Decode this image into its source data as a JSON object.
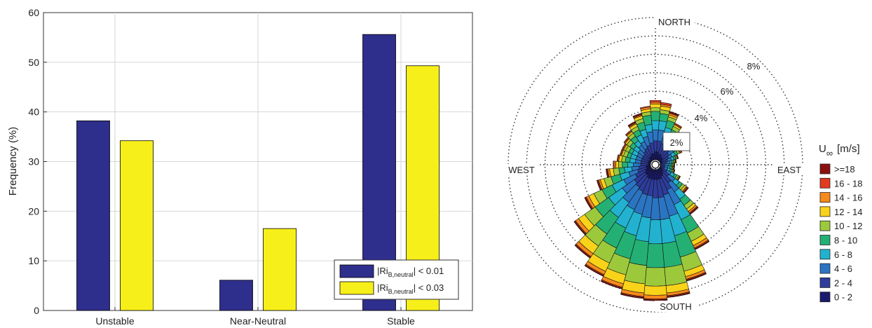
{
  "chart_data": [
    {
      "type": "bar",
      "categories": [
        "Unstable",
        "Near-Neutral",
        "Stable"
      ],
      "series": [
        {
          "name": "|Ri_B,neutral| < 0.01",
          "name_main": "|Ri",
          "name_sub": "B,neutral",
          "name_tail": "| < 0.01",
          "color": "#2e2e8c",
          "values": [
            38.2,
            6.1,
            55.6
          ]
        },
        {
          "name": "|Ri_B,neutral| < 0.03",
          "name_main": "|Ri",
          "name_sub": "B,neutral",
          "name_tail": "| < 0.03",
          "color": "#f7ef1a",
          "values": [
            34.2,
            16.5,
            49.3
          ]
        }
      ],
      "ylabel": "Frequency (%)",
      "xlabel": "",
      "ylim": [
        0,
        60
      ],
      "yticks": [
        "0",
        "10",
        "20",
        "30",
        "40",
        "50",
        "60"
      ],
      "grid": true,
      "legend_position": "bottom-right"
    },
    {
      "type": "wind-rose",
      "direction_labels": {
        "north": "NORTH",
        "south": "SOUTH",
        "east": "EAST",
        "west": "WEST"
      },
      "ring_values": [
        2,
        4,
        6,
        8
      ],
      "ring_labels": [
        "2%",
        "4%",
        "6%",
        "8%"
      ],
      "legend_title_main": "U",
      "legend_title_sub": "∞",
      "legend_title_unit": "[m/s]",
      "speed_bins": [
        {
          "label": ">=18",
          "color": "#8b0f0f"
        },
        {
          "label": "16 - 18",
          "color": "#e23a1f"
        },
        {
          "label": "14 - 16",
          "color": "#f7891c"
        },
        {
          "label": "12 - 14",
          "color": "#f9d21a"
        },
        {
          "label": "10 - 12",
          "color": "#9cc93c"
        },
        {
          "label": "8 - 10",
          "color": "#24b075"
        },
        {
          "label": "6 - 8",
          "color": "#22b2cf"
        },
        {
          "label": "4 - 6",
          "color": "#2b74c2"
        },
        {
          "label": "2 - 4",
          "color": "#2e3c9b"
        },
        {
          "label": "0 - 2",
          "color": "#1a1a6e"
        }
      ],
      "sectors": [
        {
          "dir": 0,
          "cum": [
            0.7,
            1.3,
            1.9,
            2.4,
            2.9,
            3.1,
            3.3,
            3.4,
            3.5,
            3.5
          ]
        },
        {
          "dir": 10,
          "cum": [
            0.7,
            1.3,
            1.9,
            2.4,
            2.8,
            3.0,
            3.2,
            3.3,
            3.4,
            3.4
          ]
        },
        {
          "dir": 20,
          "cum": [
            0.6,
            1.2,
            1.7,
            2.1,
            2.5,
            2.7,
            2.8,
            2.9,
            2.95,
            3.0
          ]
        },
        {
          "dir": 30,
          "cum": [
            0.6,
            1.1,
            1.5,
            1.8,
            2.1,
            2.3,
            2.4,
            2.45,
            2.5,
            2.5
          ]
        },
        {
          "dir": 40,
          "cum": [
            0.5,
            1.0,
            1.3,
            1.6,
            1.8,
            2.0,
            2.1,
            2.15,
            2.2,
            2.2
          ]
        },
        {
          "dir": 50,
          "cum": [
            0.5,
            0.9,
            1.2,
            1.4,
            1.6,
            1.7,
            1.8,
            1.85,
            1.9,
            1.9
          ]
        },
        {
          "dir": 60,
          "cum": [
            0.4,
            0.8,
            1.0,
            1.2,
            1.35,
            1.45,
            1.5,
            1.55,
            1.6,
            1.6
          ]
        },
        {
          "dir": 70,
          "cum": [
            0.4,
            0.7,
            0.9,
            1.05,
            1.15,
            1.2,
            1.25,
            1.28,
            1.3,
            1.3
          ]
        },
        {
          "dir": 80,
          "cum": [
            0.3,
            0.6,
            0.8,
            0.9,
            1.0,
            1.05,
            1.1,
            1.12,
            1.15,
            1.15
          ]
        },
        {
          "dir": 90,
          "cum": [
            0.3,
            0.5,
            0.7,
            0.8,
            0.9,
            0.95,
            1.0,
            1.02,
            1.04,
            1.05
          ]
        },
        {
          "dir": 100,
          "cum": [
            0.3,
            0.5,
            0.7,
            0.8,
            0.9,
            0.95,
            1.0,
            1.02,
            1.04,
            1.05
          ]
        },
        {
          "dir": 110,
          "cum": [
            0.3,
            0.5,
            0.7,
            0.85,
            0.95,
            1.0,
            1.05,
            1.07,
            1.09,
            1.1
          ]
        },
        {
          "dir": 120,
          "cum": [
            0.4,
            0.7,
            0.95,
            1.15,
            1.3,
            1.4,
            1.45,
            1.48,
            1.5,
            1.5
          ]
        },
        {
          "dir": 130,
          "cum": [
            0.5,
            0.9,
            1.3,
            1.6,
            1.8,
            1.95,
            2.05,
            2.1,
            2.15,
            2.2
          ]
        },
        {
          "dir": 140,
          "cum": [
            0.6,
            1.2,
            1.8,
            2.3,
            2.7,
            2.95,
            3.1,
            3.2,
            3.25,
            3.3
          ]
        },
        {
          "dir": 150,
          "cum": [
            0.7,
            1.5,
            2.4,
            3.3,
            4.1,
            4.6,
            4.85,
            5.0,
            5.05,
            5.1
          ]
        },
        {
          "dir": 160,
          "cum": [
            0.8,
            1.7,
            2.9,
            4.0,
            5.2,
            6.0,
            6.3,
            6.45,
            6.5,
            6.55
          ]
        },
        {
          "dir": 170,
          "cum": [
            0.8,
            1.8,
            3.0,
            4.3,
            5.6,
            6.6,
            7.0,
            7.15,
            7.2,
            7.25
          ]
        },
        {
          "dir": 180,
          "cum": [
            0.8,
            1.8,
            3.0,
            4.3,
            5.6,
            6.6,
            7.1,
            7.3,
            7.35,
            7.4
          ]
        },
        {
          "dir": 190,
          "cum": [
            0.8,
            1.7,
            2.9,
            4.2,
            5.5,
            6.5,
            7.0,
            7.2,
            7.25,
            7.3
          ]
        },
        {
          "dir": 200,
          "cum": [
            0.8,
            1.7,
            2.8,
            4.0,
            5.3,
            6.2,
            6.7,
            6.9,
            6.95,
            7.0
          ]
        },
        {
          "dir": 210,
          "cum": [
            0.8,
            1.6,
            2.7,
            3.8,
            5.0,
            5.9,
            6.4,
            6.6,
            6.65,
            6.7
          ]
        },
        {
          "dir": 220,
          "cum": [
            0.7,
            1.5,
            2.5,
            3.5,
            4.6,
            5.4,
            5.9,
            6.1,
            6.15,
            6.2
          ]
        },
        {
          "dir": 230,
          "cum": [
            0.7,
            1.4,
            2.2,
            3.1,
            4.0,
            4.7,
            5.1,
            5.3,
            5.35,
            5.4
          ]
        },
        {
          "dir": 240,
          "cum": [
            0.6,
            1.2,
            1.9,
            2.6,
            3.2,
            3.7,
            4.0,
            4.15,
            4.2,
            4.25
          ]
        },
        {
          "dir": 250,
          "cum": [
            0.5,
            1.0,
            1.5,
            2.0,
            2.5,
            2.9,
            3.1,
            3.2,
            3.25,
            3.3
          ]
        },
        {
          "dir": 260,
          "cum": [
            0.5,
            0.9,
            1.3,
            1.7,
            2.0,
            2.3,
            2.5,
            2.6,
            2.65,
            2.7
          ]
        },
        {
          "dir": 270,
          "cum": [
            0.4,
            0.8,
            1.2,
            1.5,
            1.8,
            2.0,
            2.15,
            2.25,
            2.3,
            2.3
          ]
        },
        {
          "dir": 280,
          "cum": [
            0.4,
            0.8,
            1.1,
            1.4,
            1.65,
            1.85,
            2.0,
            2.05,
            2.1,
            2.1
          ]
        },
        {
          "dir": 290,
          "cum": [
            0.4,
            0.8,
            1.1,
            1.4,
            1.6,
            1.8,
            1.9,
            1.95,
            2.0,
            2.0
          ]
        },
        {
          "dir": 300,
          "cum": [
            0.4,
            0.8,
            1.1,
            1.4,
            1.6,
            1.8,
            1.9,
            1.95,
            2.0,
            2.0
          ]
        },
        {
          "dir": 310,
          "cum": [
            0.4,
            0.8,
            1.15,
            1.45,
            1.7,
            1.9,
            2.0,
            2.05,
            2.1,
            2.1
          ]
        },
        {
          "dir": 320,
          "cum": [
            0.5,
            0.9,
            1.3,
            1.6,
            1.9,
            2.1,
            2.2,
            2.25,
            2.3,
            2.3
          ]
        },
        {
          "dir": 330,
          "cum": [
            0.5,
            1.0,
            1.4,
            1.8,
            2.1,
            2.3,
            2.45,
            2.5,
            2.55,
            2.6
          ]
        },
        {
          "dir": 340,
          "cum": [
            0.6,
            1.1,
            1.6,
            2.0,
            2.4,
            2.6,
            2.75,
            2.8,
            2.85,
            2.9
          ]
        },
        {
          "dir": 350,
          "cum": [
            0.6,
            1.2,
            1.8,
            2.2,
            2.7,
            2.9,
            3.05,
            3.15,
            3.2,
            3.2
          ]
        }
      ]
    }
  ]
}
